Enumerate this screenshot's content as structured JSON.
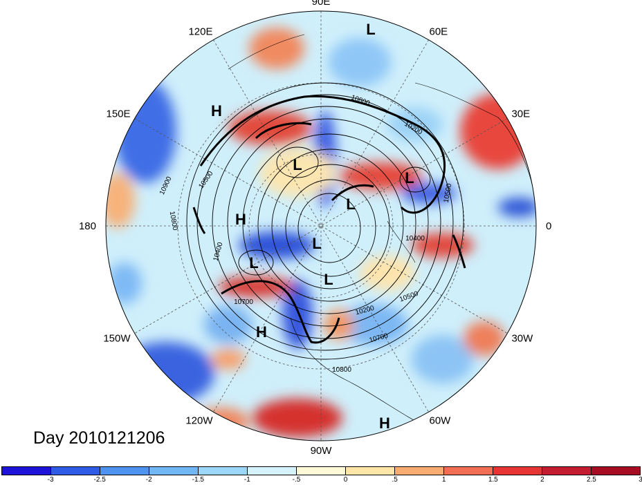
{
  "title": "Day 2010121206",
  "longitude_labels": [
    {
      "text": "90E",
      "angle": 0
    },
    {
      "text": "60E",
      "angle": 30
    },
    {
      "text": "30E",
      "angle": 60
    },
    {
      "text": "0",
      "angle": 90
    },
    {
      "text": "30W",
      "angle": 120
    },
    {
      "text": "60W",
      "angle": 150
    },
    {
      "text": "90W",
      "angle": 180
    },
    {
      "text": "120W",
      "angle": 210
    },
    {
      "text": "150W",
      "angle": 240
    },
    {
      "text": "180",
      "angle": 270
    },
    {
      "text": "150E",
      "angle": 300
    },
    {
      "text": "120E",
      "angle": 330
    }
  ],
  "pressure_centers": [
    {
      "type": "L"
    },
    {
      "type": "H"
    },
    {
      "type": "L"
    },
    {
      "type": "L"
    },
    {
      "type": "L"
    },
    {
      "type": "H"
    },
    {
      "type": "L"
    },
    {
      "type": "L"
    },
    {
      "type": "L"
    },
    {
      "type": "H"
    },
    {
      "type": "H"
    }
  ],
  "contour_labels": [
    "10800",
    "10200",
    "10900",
    "10500",
    "10800",
    "10400",
    "10700",
    "10200",
    "10500",
    "10700",
    "10800",
    "10400",
    "10500"
  ],
  "colorbar": {
    "colors": [
      "#1f12d8",
      "#2f5ce6",
      "#4d93ef",
      "#71b6f5",
      "#9cd7fa",
      "#d5f2fd",
      "#fdf9d7",
      "#fde6a8",
      "#f9ac72",
      "#f26e55",
      "#e73535",
      "#c51d30",
      "#a60d22"
    ],
    "tick_labels": [
      "-3",
      "-2.5",
      "-2",
      "-1.5",
      "-1",
      "-.5",
      "0",
      ".5",
      "1",
      "1.5",
      "2",
      "2.5",
      "3"
    ]
  }
}
